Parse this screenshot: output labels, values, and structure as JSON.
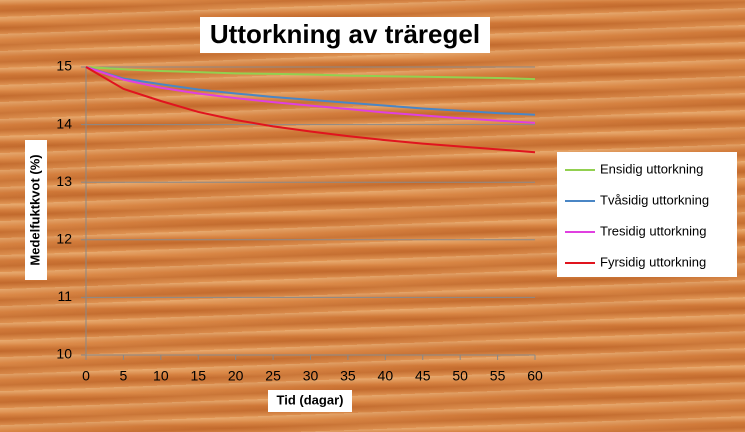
{
  "chart_data": {
    "type": "line",
    "title": "Uttorkning av träregel",
    "x_label": "Tid (dagar)",
    "y_label": "Medelfuktkvot (%)",
    "x": [
      0,
      5,
      10,
      15,
      20,
      25,
      30,
      35,
      40,
      45,
      50,
      55,
      60
    ],
    "series": [
      {
        "name": "Ensidig uttorkning",
        "color": "#92d050",
        "values": [
          15,
          14.96,
          14.93,
          14.91,
          14.89,
          14.88,
          14.87,
          14.85,
          14.84,
          14.83,
          14.82,
          14.81,
          14.79
        ]
      },
      {
        "name": "Tvåsidig uttorkning",
        "color": "#4a86c5",
        "values": [
          15,
          14.8,
          14.7,
          14.61,
          14.54,
          14.48,
          14.43,
          14.38,
          14.33,
          14.28,
          14.24,
          14.2,
          14.17
        ]
      },
      {
        "name": "Tresidig uttorkning",
        "color": "#e040e0",
        "values": [
          15,
          14.78,
          14.64,
          14.54,
          14.46,
          14.39,
          14.33,
          14.27,
          14.21,
          14.16,
          14.11,
          14.07,
          14.03
        ]
      },
      {
        "name": "Fyrsidig uttorkning",
        "color": "#e0141e",
        "values": [
          15,
          14.62,
          14.41,
          14.22,
          14.08,
          13.97,
          13.88,
          13.8,
          13.73,
          13.67,
          13.62,
          13.57,
          13.52
        ]
      }
    ],
    "xlim": [
      0,
      60
    ],
    "xticks": [
      0,
      5,
      10,
      15,
      20,
      25,
      30,
      35,
      40,
      45,
      50,
      55,
      60
    ],
    "ylim": [
      10,
      15
    ],
    "yticks": [
      10,
      11,
      12,
      13,
      14,
      15
    ],
    "grid": true,
    "legend": "right"
  }
}
